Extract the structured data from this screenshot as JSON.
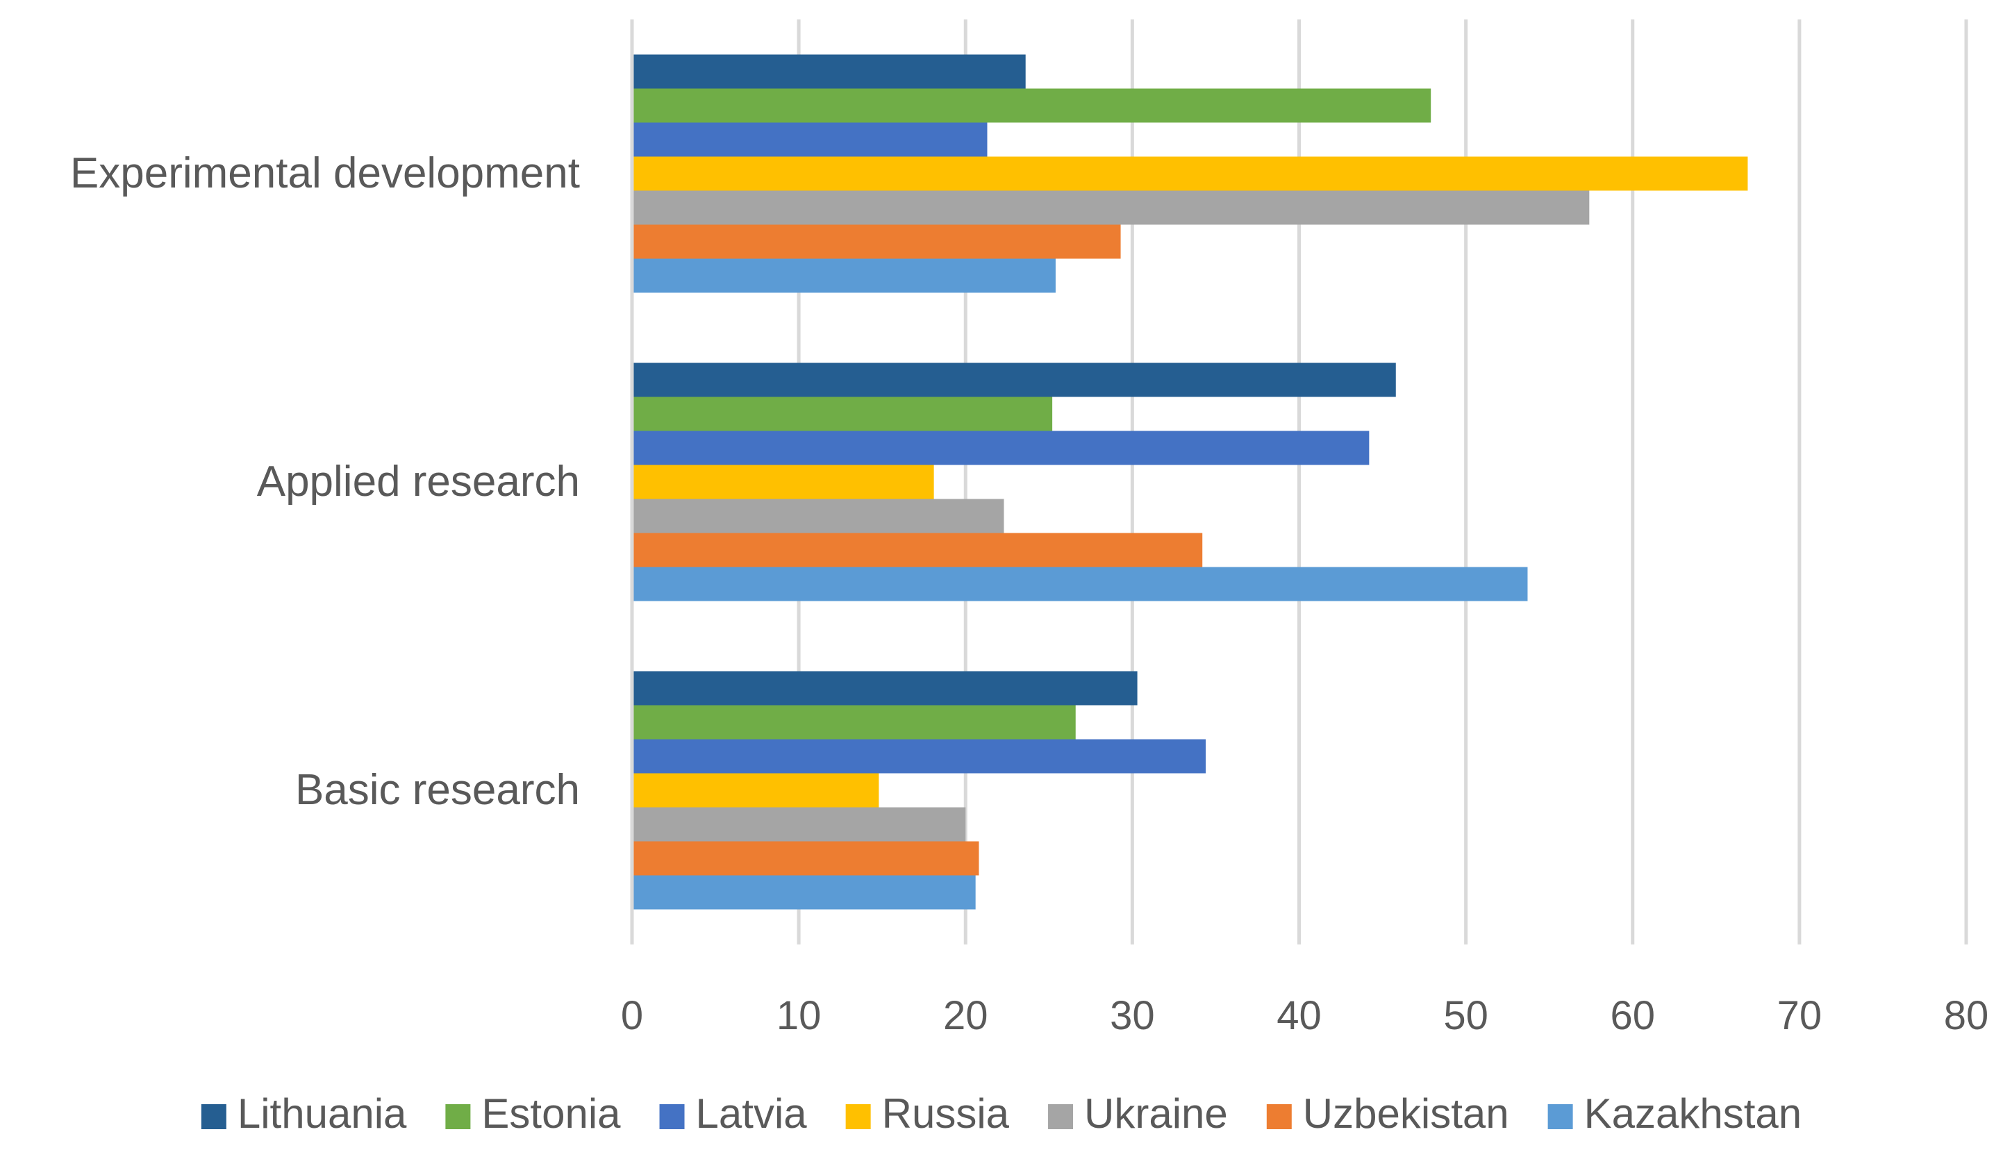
{
  "chart_data": {
    "type": "bar",
    "orientation": "horizontal",
    "title": "",
    "xlabel": "",
    "ylabel": "",
    "xlim": [
      0,
      80
    ],
    "xticks": [
      0,
      10,
      20,
      30,
      40,
      50,
      60,
      70,
      80
    ],
    "grid": true,
    "legend_position": "bottom",
    "categories": [
      "Experimental development",
      "Applied research",
      "Basic research"
    ],
    "series": [
      {
        "name": "Lithuania",
        "color": "#255E91",
        "values": [
          23.6,
          45.8,
          30.3
        ]
      },
      {
        "name": "Estonia",
        "color": "#70AD47",
        "values": [
          47.9,
          25.2,
          26.6
        ]
      },
      {
        "name": "Latvia",
        "color": "#4472C4",
        "values": [
          21.3,
          44.2,
          34.4
        ]
      },
      {
        "name": "Russia",
        "color": "#FFC000",
        "values": [
          66.9,
          18.1,
          14.8
        ]
      },
      {
        "name": "Ukraine",
        "color": "#A5A5A5",
        "values": [
          57.4,
          22.3,
          20.0
        ]
      },
      {
        "name": "Uzbekistan",
        "color": "#ED7D31",
        "values": [
          29.3,
          34.2,
          20.8
        ]
      },
      {
        "name": "Kazakhstan",
        "color": "#5B9BD5",
        "values": [
          25.4,
          53.7,
          20.6
        ]
      }
    ]
  }
}
